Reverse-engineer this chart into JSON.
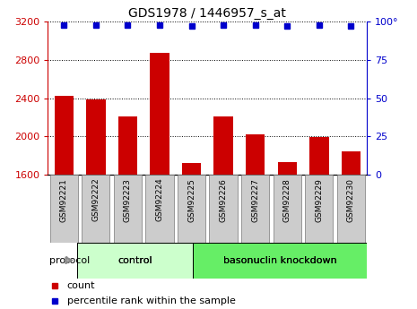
{
  "title": "GDS1978 / 1446957_s_at",
  "categories": [
    "GSM92221",
    "GSM92222",
    "GSM92223",
    "GSM92224",
    "GSM92225",
    "GSM92226",
    "GSM92227",
    "GSM92228",
    "GSM92229",
    "GSM92230"
  ],
  "bar_values": [
    2420,
    2390,
    2210,
    2870,
    1720,
    2210,
    2020,
    1730,
    1990,
    1840
  ],
  "percentile_values": [
    98,
    98,
    98,
    98,
    97,
    98,
    98,
    97,
    98,
    97
  ],
  "ylim_left": [
    1600,
    3200
  ],
  "ylim_right": [
    0,
    100
  ],
  "yticks_left": [
    1600,
    2000,
    2400,
    2800,
    3200
  ],
  "yticks_right": [
    0,
    25,
    50,
    75,
    100
  ],
  "yticklabels_right": [
    "0",
    "25",
    "50",
    "75",
    "100°"
  ],
  "bar_color": "#cc0000",
  "dot_color": "#0000cc",
  "bg_color": "#ffffff",
  "control_count": 4,
  "control_label": "control",
  "knockdown_label": "basonuclin knockdown",
  "protocol_label": "protocol",
  "legend_count_label": "count",
  "legend_percentile_label": "percentile rank within the sample",
  "control_bg_color": "#ccffcc",
  "knockdown_bg_color": "#66ee66",
  "tick_bg_color": "#cccccc",
  "bar_width": 0.6
}
